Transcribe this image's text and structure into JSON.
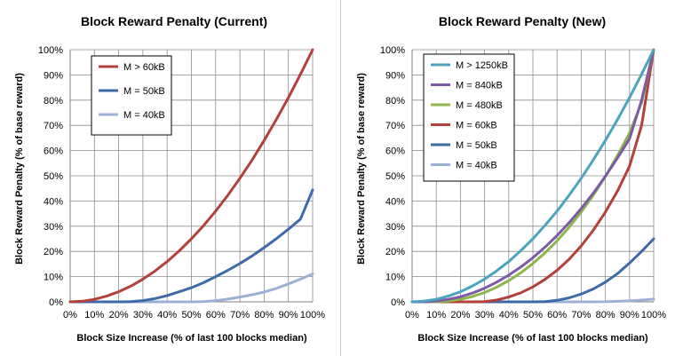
{
  "chart_data": [
    {
      "type": "line",
      "title": "Block Reward Penalty (Current)",
      "xlabel": "Block Size Increase (% of last 100 blocks median)",
      "ylabel": "Block Reward Penalty (% of base reward)",
      "xlim": [
        0,
        100
      ],
      "ylim": [
        0,
        100
      ],
      "x_ticks": [
        "0%",
        "10%",
        "20%",
        "30%",
        "40%",
        "50%",
        "60%",
        "70%",
        "80%",
        "90%",
        "100%"
      ],
      "y_ticks": [
        "0%",
        "10%",
        "20%",
        "30%",
        "40%",
        "50%",
        "60%",
        "70%",
        "80%",
        "90%",
        "100%"
      ],
      "grid": true,
      "legend_position": "top-left",
      "series": [
        {
          "name": "M > 60kB",
          "color": "#b3403a",
          "x": [
            0,
            5,
            10,
            15,
            20,
            25,
            30,
            35,
            40,
            45,
            50,
            55,
            60,
            65,
            70,
            75,
            80,
            85,
            90,
            95,
            100
          ],
          "y": [
            0,
            0.25,
            1,
            2.25,
            4,
            6.25,
            9,
            12.25,
            16,
            20.25,
            25,
            30.25,
            36,
            42.25,
            49,
            56.25,
            64,
            72.25,
            81,
            90.25,
            100
          ]
        },
        {
          "name": "M = 50kB",
          "color": "#3f6aa8",
          "x": [
            0,
            20,
            25,
            30,
            35,
            40,
            45,
            50,
            55,
            60,
            65,
            70,
            75,
            80,
            85,
            90,
            95,
            100
          ],
          "y": [
            0,
            0,
            0.1,
            0.5,
            1.3,
            2.5,
            4,
            5.6,
            7.6,
            10,
            12.5,
            15.2,
            18.2,
            21.5,
            25,
            28.8,
            32.8,
            44.4
          ]
        },
        {
          "name": "M = 40kB",
          "color": "#9cb0d6",
          "x": [
            0,
            50,
            55,
            60,
            65,
            70,
            75,
            80,
            85,
            90,
            95,
            100
          ],
          "y": [
            0,
            0,
            0.1,
            0.5,
            1.1,
            1.9,
            2.8,
            3.9,
            5.3,
            7.1,
            9,
            11.1
          ]
        }
      ]
    },
    {
      "type": "line",
      "title": "Block Reward Penalty (New)",
      "xlabel": "Block Size Increase (% of last 100 blocks median)",
      "ylabel": "Block Reward Penalty (% of base reward)",
      "xlim": [
        0,
        100
      ],
      "ylim": [
        0,
        100
      ],
      "x_ticks": [
        "0%",
        "10%",
        "20%",
        "30%",
        "40%",
        "50%",
        "60%",
        "70%",
        "80%",
        "90%",
        "100%"
      ],
      "y_ticks": [
        "0%",
        "10%",
        "20%",
        "30%",
        "40%",
        "50%",
        "60%",
        "70%",
        "80%",
        "90%",
        "100%"
      ],
      "grid": true,
      "legend_position": "top-left",
      "series": [
        {
          "name": "M > 1250kB",
          "color": "#4aa4bb",
          "x": [
            0,
            5,
            10,
            15,
            20,
            25,
            30,
            35,
            40,
            45,
            50,
            55,
            60,
            65,
            70,
            75,
            80,
            85,
            90,
            95,
            100
          ],
          "y": [
            0,
            0.3,
            1,
            2.3,
            4,
            6.3,
            9,
            12.3,
            16,
            20.3,
            25,
            30.3,
            36,
            42.3,
            49,
            56.3,
            64,
            72.3,
            81,
            90.3,
            100
          ]
        },
        {
          "name": "M = 840kB",
          "color": "#7c5aa5",
          "x": [
            0,
            5,
            10,
            15,
            20,
            25,
            30,
            35,
            40,
            45,
            50,
            55,
            60,
            65,
            70,
            75,
            80,
            85,
            90,
            95,
            100
          ],
          "y": [
            0,
            0,
            0.3,
            1,
            2,
            3.5,
            5.4,
            7.8,
            10.6,
            13.8,
            17.5,
            21.7,
            26.3,
            31.4,
            37,
            43.1,
            49.8,
            57,
            64.7,
            80,
            100
          ]
        },
        {
          "name": "M = 480kB",
          "color": "#8db64b",
          "x": [
            0,
            10,
            15,
            20,
            25,
            30,
            35,
            40,
            45,
            50,
            55,
            60,
            65,
            70,
            75,
            80,
            85,
            90,
            95,
            100
          ],
          "y": [
            0,
            0,
            0.3,
            1,
            2.1,
            3.7,
            5.8,
            8.4,
            11.5,
            15.2,
            19.4,
            24.2,
            29.6,
            35.6,
            42.3,
            49.8,
            58,
            67,
            79,
            100
          ]
        },
        {
          "name": "M = 60kB",
          "color": "#b3403a",
          "x": [
            0,
            25,
            30,
            35,
            40,
            45,
            50,
            55,
            60,
            65,
            70,
            75,
            80,
            85,
            90,
            95,
            100
          ],
          "y": [
            0,
            0,
            0.1,
            0.7,
            1.9,
            3.6,
            5.9,
            8.9,
            12.5,
            16.9,
            22.2,
            28.4,
            35.6,
            43.9,
            53.8,
            70,
            100
          ]
        },
        {
          "name": "M = 50kB",
          "color": "#3f6aa8",
          "x": [
            0,
            50,
            55,
            60,
            65,
            70,
            75,
            80,
            85,
            90,
            95,
            100
          ],
          "y": [
            0,
            0,
            0.1,
            0.6,
            1.6,
            3.1,
            5.1,
            7.8,
            11.2,
            15.4,
            20,
            25
          ]
        },
        {
          "name": "M = 40kB",
          "color": "#9cb0d6",
          "x": [
            0,
            75,
            80,
            85,
            90,
            95,
            100
          ],
          "y": [
            0,
            0,
            0.05,
            0.2,
            0.4,
            0.7,
            1.1
          ]
        }
      ]
    }
  ]
}
